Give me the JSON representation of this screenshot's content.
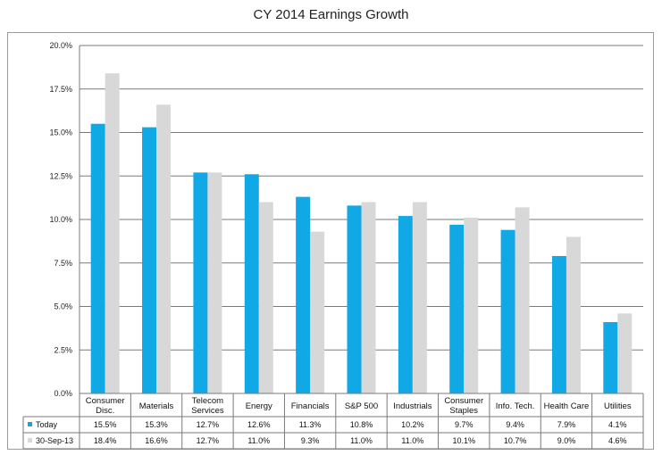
{
  "chart_data": {
    "type": "bar",
    "title": "CY 2014 Earnings Growth",
    "categories": [
      [
        "Consumer",
        "Disc."
      ],
      [
        "Materials"
      ],
      [
        "Telecom",
        "Services"
      ],
      [
        "Energy"
      ],
      [
        "Financials"
      ],
      [
        "S&P 500"
      ],
      [
        "Industrials"
      ],
      [
        "Consumer",
        "Staples"
      ],
      [
        "Info. Tech."
      ],
      [
        "Health Care"
      ],
      [
        "Utilities"
      ]
    ],
    "series": [
      {
        "name": "Today",
        "color": "#11a9e5",
        "values": [
          15.5,
          15.3,
          12.7,
          12.6,
          11.3,
          10.8,
          10.2,
          9.7,
          9.4,
          7.9,
          4.1
        ],
        "labels": [
          "15.5%",
          "15.3%",
          "12.7%",
          "12.6%",
          "11.3%",
          "10.8%",
          "10.2%",
          "9.7%",
          "9.4%",
          "7.9%",
          "4.1%"
        ]
      },
      {
        "name": "30-Sep-13",
        "color": "#d8d8d8",
        "values": [
          18.4,
          16.6,
          12.7,
          11.0,
          9.3,
          11.0,
          11.0,
          10.1,
          10.7,
          9.0,
          4.6
        ],
        "labels": [
          "18.4%",
          "16.6%",
          "12.7%",
          "11.0%",
          "9.3%",
          "11.0%",
          "11.0%",
          "10.1%",
          "10.7%",
          "9.0%",
          "4.6%"
        ]
      }
    ],
    "ylim": [
      0,
      20
    ],
    "yticks": [
      0,
      2.5,
      5,
      7.5,
      10,
      12.5,
      15,
      17.5,
      20
    ],
    "ytick_labels": [
      "0.0%",
      "2.5%",
      "5.0%",
      "7.5%",
      "10.0%",
      "12.5%",
      "15.0%",
      "17.5%",
      "20.0%"
    ],
    "grid": true,
    "legend": "data-table"
  }
}
